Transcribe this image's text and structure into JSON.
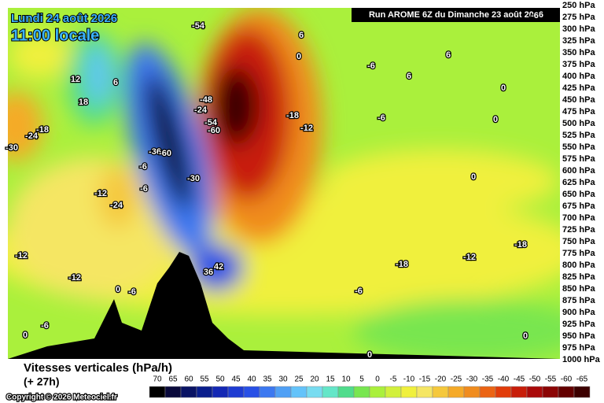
{
  "chart_data": {
    "type": "cross-section",
    "date": "Lundi 24 août 2026",
    "time": "11:00 locale",
    "run": "Run AROME 6Z du Dimanche 23 août 2026",
    "title": "Vitesses verticales (hPa/h)",
    "subtitle": "(+ 27h)",
    "copyright": "Copyright © 2026 Meteociel.fr",
    "y_labels": [
      "250 hPa",
      "275 hPa",
      "300 hPa",
      "325 hPa",
      "350 hPa",
      "375 hPa",
      "400 hPa",
      "425 hPa",
      "450 hPa",
      "475 hPa",
      "500 hPa",
      "525 hPa",
      "550 hPa",
      "575 hPa",
      "600 hPa",
      "625 hPa",
      "650 hPa",
      "675 hPa",
      "700 hPa",
      "725 hPa",
      "750 hPa",
      "775 hPa",
      "800 hPa",
      "825 hPa",
      "850 hPa",
      "875 hPa",
      "900 hPa",
      "925 hPa",
      "950 hPa",
      "975 hPa",
      "1000 hPa"
    ],
    "colorbar": {
      "ticks": [
        70,
        65,
        60,
        55,
        50,
        45,
        40,
        35,
        30,
        25,
        20,
        15,
        10,
        5,
        0,
        -5,
        -10,
        -15,
        -20,
        -25,
        -30,
        -35,
        -40,
        -45,
        -50,
        -55,
        -60,
        -65
      ],
      "colors": [
        "#000000",
        "#0a0a3c",
        "#0a1464",
        "#0a1e8c",
        "#1428b4",
        "#1e3cd2",
        "#2850e6",
        "#3c78f0",
        "#50a0f5",
        "#64c3fa",
        "#78dcf0",
        "#64e6c8",
        "#50dc8c",
        "#78e650",
        "#aaf03c",
        "#d2f03c",
        "#f0f03c",
        "#f5e664",
        "#f5c83c",
        "#f5aa28",
        "#f08c1e",
        "#eb6414",
        "#e13c0a",
        "#c81e0a",
        "#aa0a0a",
        "#8c0505",
        "#640000",
        "#3c0000"
      ]
    },
    "contour_labels": [
      "-54",
      "6",
      "0",
      "6",
      "-6",
      "0",
      "6",
      "-6",
      "12",
      "18",
      "6",
      "-48",
      "-24",
      "-54",
      "-60",
      "-18",
      "-12",
      "-6",
      "0",
      "-30",
      "-24",
      "-18",
      "-36",
      "-60",
      "-6",
      "-12",
      "-24",
      "-6",
      "0",
      "-12",
      "-12",
      "-30",
      "36",
      "42",
      "-18",
      "-12",
      "-18",
      "0",
      "-6",
      "-6",
      "0",
      "-6",
      "0",
      "0"
    ]
  }
}
